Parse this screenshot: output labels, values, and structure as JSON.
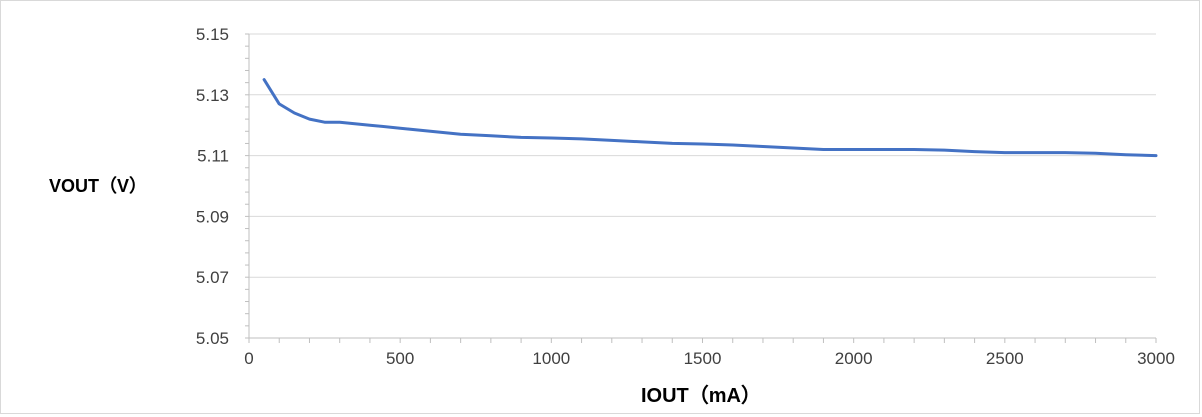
{
  "chart_data": {
    "type": "line",
    "title": "",
    "xlabel": "IOUT（mA）",
    "ylabel": "VOUT（V）",
    "xlim": [
      0,
      3000
    ],
    "ylim": [
      5.05,
      5.15
    ],
    "x_ticks": [
      "0",
      "500",
      "1000",
      "1500",
      "2000",
      "2500",
      "3000"
    ],
    "y_ticks": [
      "5.05",
      "5.07",
      "5.09",
      "5.11",
      "5.13",
      "5.15"
    ],
    "grid": true,
    "legend": "none",
    "line_color": "#4472c4",
    "series": [
      {
        "x": [
          50,
          100,
          150,
          200,
          250,
          300,
          400,
          500,
          600,
          700,
          800,
          900,
          1000,
          1100,
          1200,
          1300,
          1400,
          1500,
          1600,
          1700,
          1800,
          1900,
          2000,
          2100,
          2200,
          2300,
          2400,
          2500,
          2600,
          2700,
          2800,
          2900,
          3000
        ],
        "y": [
          5.135,
          5.127,
          5.124,
          5.122,
          5.121,
          5.121,
          5.12,
          5.119,
          5.118,
          5.117,
          5.1165,
          5.116,
          5.1158,
          5.1155,
          5.115,
          5.1145,
          5.114,
          5.1138,
          5.1135,
          5.113,
          5.1125,
          5.112,
          5.112,
          5.112,
          5.112,
          5.1118,
          5.1113,
          5.111,
          5.111,
          5.111,
          5.1108,
          5.1103,
          5.11
        ]
      }
    ]
  }
}
